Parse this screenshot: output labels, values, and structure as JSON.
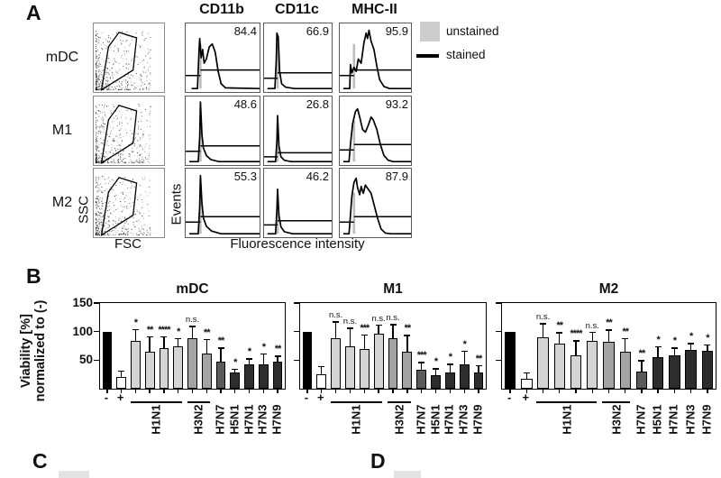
{
  "panel_a": {
    "label": "A",
    "marker_headers": [
      "CD11b",
      "CD11c",
      "MHC-II"
    ],
    "legend": [
      {
        "swatch": "gray-box",
        "label": "unstained"
      },
      {
        "swatch": "black-line",
        "label": "stained"
      }
    ],
    "rows": [
      {
        "cell_type": "mDC",
        "percentages": [
          "84.4",
          "66.9",
          "95.9"
        ]
      },
      {
        "cell_type": "M1",
        "percentages": [
          "48.6",
          "26.8",
          "93.2"
        ]
      },
      {
        "cell_type": "M2",
        "percentages": [
          "55.3",
          "46.2",
          "87.9"
        ]
      }
    ],
    "scatter_xlabel": "FSC",
    "scatter_ylabel": "SSC",
    "hist_ylabel": "Events",
    "hist_xlabel": "Fluorescence intensity"
  },
  "panel_b": {
    "label": "B",
    "ylabel_line1": "Viability [%]",
    "ylabel_line2": "normalized to (-)",
    "yticks": [
      50,
      100,
      150
    ],
    "bar_colors": {
      "neg": "#000000",
      "pos": "#ffffff",
      "H1N1": "#d4d4d4",
      "H3N2": "#a3a3a3",
      "H7N7": "#5a5a5a",
      "dark": "#2d2d2d"
    },
    "groups": [
      "neg",
      "pos",
      "H1N1",
      "H1N1",
      "H1N1",
      "H1N1",
      "H3N2",
      "H3N2",
      "H7N7",
      "dark",
      "dark",
      "dark",
      "dark"
    ],
    "x_groups": [
      {
        "label": "-",
        "span": [
          0,
          0
        ],
        "rotate": false,
        "underline": false
      },
      {
        "label": "+",
        "span": [
          1,
          1
        ],
        "rotate": false,
        "underline": false
      },
      {
        "label": "H1N1",
        "span": [
          2,
          5
        ],
        "rotate": true,
        "underline": true
      },
      {
        "label": "H3N2",
        "span": [
          6,
          7
        ],
        "rotate": true,
        "underline": true
      },
      {
        "label": "H7N7",
        "span": [
          8,
          8
        ],
        "rotate": true,
        "underline": false
      },
      {
        "label": "H5N1",
        "span": [
          9,
          9
        ],
        "rotate": true,
        "underline": false
      },
      {
        "label": "H7N1",
        "span": [
          10,
          10
        ],
        "rotate": true,
        "underline": false
      },
      {
        "label": "H7N3",
        "span": [
          11,
          11
        ],
        "rotate": true,
        "underline": false
      },
      {
        "label": "H7N9",
        "span": [
          12,
          12
        ],
        "rotate": true,
        "underline": false
      }
    ]
  },
  "chart_data": [
    {
      "type": "bar",
      "title": "mDC",
      "ylabel": "Viability [%] normalized to (-)",
      "ylim": [
        0,
        150
      ],
      "show_ytick_labels": true,
      "categories": [
        "-",
        "+",
        "H1N1",
        "H1N1",
        "H1N1",
        "H1N1",
        "H3N2",
        "H3N2",
        "H7N7",
        "H5N1",
        "H7N1",
        "H7N3",
        "H7N9"
      ],
      "values": [
        100,
        20,
        84,
        64,
        71,
        74,
        88,
        62,
        48,
        28,
        43,
        42,
        47
      ],
      "errors": [
        0,
        12,
        21,
        28,
        21,
        15,
        22,
        25,
        24,
        7,
        10,
        20,
        11
      ],
      "significance": [
        null,
        null,
        "*",
        "**",
        "****",
        "*",
        "n.s.",
        "**",
        "**",
        "*",
        "*",
        "*",
        "**"
      ]
    },
    {
      "type": "bar",
      "title": "M1",
      "ylabel": "Viability [%] normalized to (-)",
      "ylim": [
        0,
        150
      ],
      "show_ytick_labels": false,
      "categories": [
        "-",
        "+",
        "H1N1",
        "H1N1",
        "H1N1",
        "H1N1",
        "H3N2",
        "H3N2",
        "H7N7",
        "H5N1",
        "H7N1",
        "H7N3",
        "H7N9"
      ],
      "values": [
        100,
        25,
        88,
        74,
        69,
        97,
        88,
        64,
        33,
        24,
        28,
        42,
        28
      ],
      "errors": [
        0,
        15,
        30,
        33,
        26,
        15,
        25,
        30,
        14,
        12,
        16,
        25,
        13
      ],
      "significance": [
        null,
        null,
        "n.s.",
        "n.s.",
        "***",
        "n.s.",
        "n.s.",
        "**",
        "***",
        "*",
        "*",
        "*",
        "**"
      ]
    },
    {
      "type": "bar",
      "title": "M2",
      "ylabel": "Viability [%] normalized to (-)",
      "ylim": [
        0,
        150
      ],
      "show_ytick_labels": false,
      "categories": [
        "-",
        "+",
        "H1N1",
        "H1N1",
        "H1N1",
        "H1N1",
        "H3N2",
        "H3N2",
        "H7N7",
        "H5N1",
        "H7N1",
        "H7N3",
        "H7N9"
      ],
      "values": [
        100,
        18,
        90,
        79,
        59,
        83,
        82,
        65,
        30,
        56,
        59,
        68,
        66
      ],
      "errors": [
        0,
        11,
        25,
        20,
        26,
        17,
        22,
        24,
        20,
        19,
        13,
        12,
        12
      ],
      "significance": [
        null,
        null,
        "n.s.",
        "**",
        "****",
        "n.s.",
        "**",
        "**",
        "**",
        "*",
        "*",
        "*",
        "*"
      ]
    }
  ],
  "panel_c": {
    "label": "C"
  },
  "panel_d": {
    "label": "D"
  }
}
